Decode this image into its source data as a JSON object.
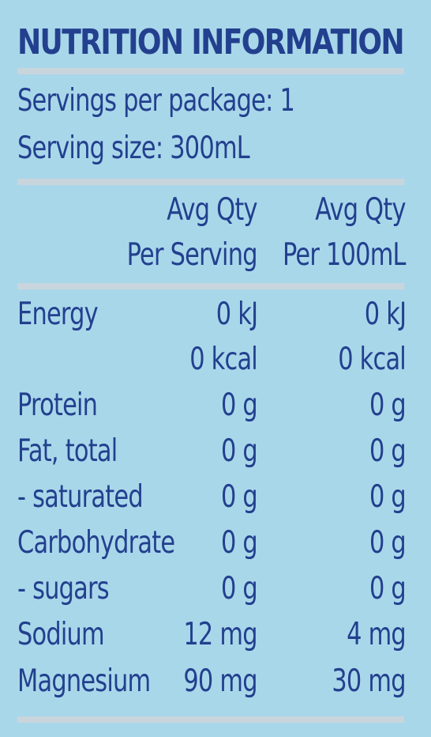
{
  "title": "NUTRITION INFORMATION",
  "servings_per_package": "Servings per package: 1",
  "serving_size": "Serving size: 300mL",
  "header": {
    "col1_line1": "Avg Qty",
    "col1_line2": "Per Serving",
    "col2_line1": "Avg Qty",
    "col2_line2": "Per 100mL"
  },
  "rows": [
    {
      "label": "Energy",
      "per_serving": "0 kJ",
      "per_100ml": "0 kJ"
    },
    {
      "label": "",
      "per_serving": "0 kcal",
      "per_100ml": "0 kcal"
    },
    {
      "label": "Protein",
      "per_serving": "0 g",
      "per_100ml": "0 g"
    },
    {
      "label": "Fat, total",
      "per_serving": "0 g",
      "per_100ml": "0 g"
    },
    {
      "label": "- saturated",
      "per_serving": "0 g",
      "per_100ml": "0 g"
    },
    {
      "label": "Carbohydrate",
      "per_serving": "0 g",
      "per_100ml": "0 g"
    },
    {
      "label": "- sugars",
      "per_serving": "0 g",
      "per_100ml": "0 g"
    },
    {
      "label": "Sodium",
      "per_serving": "12 mg",
      "per_100ml": "4 mg"
    },
    {
      "label": "Magnesium",
      "per_serving": "90 mg",
      "per_100ml": "30 mg"
    }
  ],
  "colors": {
    "background": "#a9d7ea",
    "text": "#22408e",
    "rule": "#c9d5dc"
  }
}
